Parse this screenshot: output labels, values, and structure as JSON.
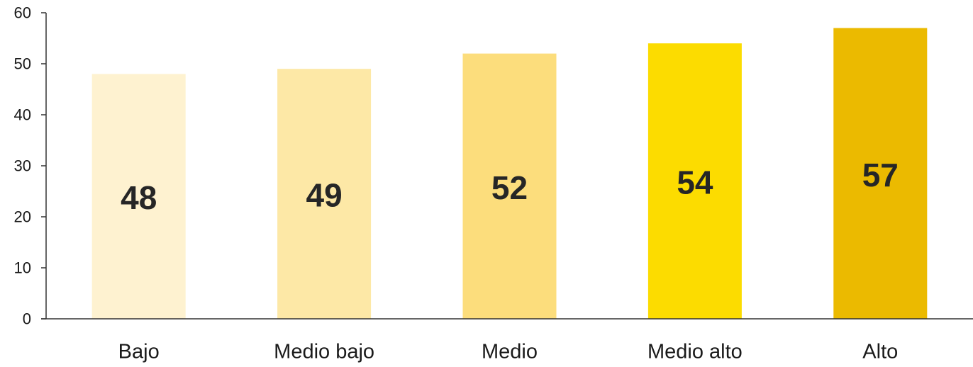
{
  "chart_data": {
    "type": "bar",
    "title": "",
    "xlabel": "",
    "ylabel": "",
    "categories": [
      "Bajo",
      "Medio bajo",
      "Medio",
      "Medio alto",
      "Alto"
    ],
    "values": [
      48,
      49,
      52,
      54,
      57
    ],
    "data_labels": [
      "48",
      "49",
      "52",
      "54",
      "57"
    ],
    "bar_colors": [
      "#FEF2D0",
      "#FDE8A6",
      "#FCDD7C",
      "#FCDC00",
      "#EBBA00"
    ],
    "ylim": [
      0,
      60
    ],
    "yticks": [
      "0",
      "10",
      "20",
      "30",
      "40",
      "50",
      "60"
    ],
    "grid": false,
    "legend": "none"
  }
}
